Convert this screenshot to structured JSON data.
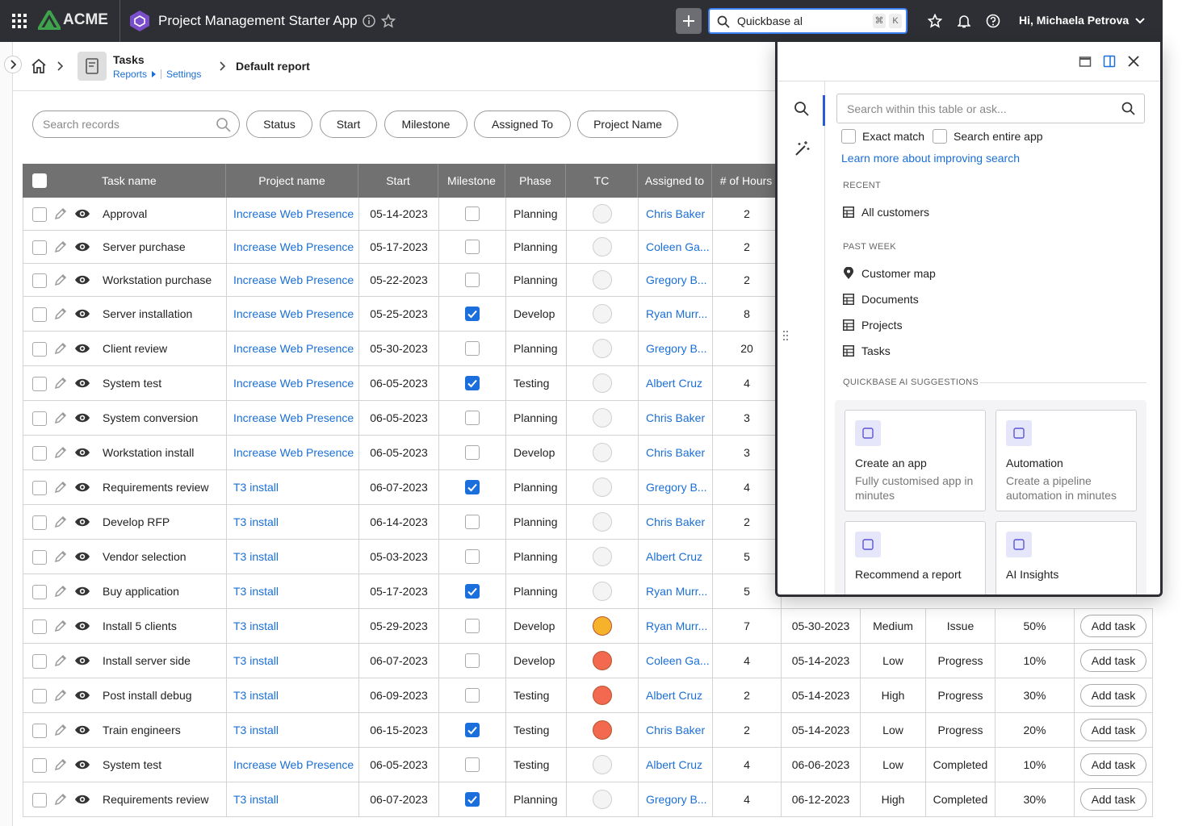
{
  "topbar": {
    "brand": "ACME",
    "app_title": "Project Management Starter App",
    "search": "Quickbase al",
    "shortcut": [
      "⌘",
      "K"
    ],
    "user": "Hi, Michaela Petrova"
  },
  "breadcrumb": {
    "table": "Tasks",
    "links": [
      "Reports",
      "Settings"
    ],
    "report": "Default report"
  },
  "filters": {
    "search_placeholder": "Search records",
    "buttons": [
      "Status",
      "Start",
      "Milestone",
      "Assigned To",
      "Project Name"
    ]
  },
  "table": {
    "columns": [
      "Task name",
      "Project name",
      "Start",
      "Milestone",
      "Phase",
      "TC",
      "Assigned to",
      "# of Hours"
    ],
    "rows": [
      {
        "task": "Approval",
        "project": "Increase Web Presence",
        "start": "05-14-2023",
        "milestone": false,
        "phase": "Planning",
        "tc": null,
        "assigned": "Chris Baker",
        "hours": 2
      },
      {
        "task": "Server purchase",
        "project": "Increase Web Presence",
        "start": "05-17-2023",
        "milestone": false,
        "phase": "Planning",
        "tc": null,
        "assigned": "Coleen Ga...",
        "hours": 2
      },
      {
        "task": "Workstation purchase",
        "project": "Increase Web Presence",
        "start": "05-22-2023",
        "milestone": false,
        "phase": "Planning",
        "tc": null,
        "assigned": "Gregory B...",
        "hours": 2
      },
      {
        "task": "Server installation",
        "project": "Increase Web Presence",
        "start": "05-25-2023",
        "milestone": true,
        "phase": "Develop",
        "tc": null,
        "assigned": "Ryan Murr...",
        "hours": 8
      },
      {
        "task": "Client review",
        "project": "Increase Web Presence",
        "start": "05-30-2023",
        "milestone": false,
        "phase": "Planning",
        "tc": null,
        "assigned": "Gregory B...",
        "hours": 20
      },
      {
        "task": "System test",
        "project": "Increase Web Presence",
        "start": "06-05-2023",
        "milestone": true,
        "phase": "Testing",
        "tc": null,
        "assigned": "Albert Cruz",
        "hours": 4
      },
      {
        "task": "System conversion",
        "project": "Increase Web Presence",
        "start": "06-05-2023",
        "milestone": false,
        "phase": "Planning",
        "tc": null,
        "assigned": "Chris Baker",
        "hours": 3
      },
      {
        "task": "Workstation install",
        "project": "Increase Web Presence",
        "start": "06-05-2023",
        "milestone": false,
        "phase": "Develop",
        "tc": null,
        "assigned": "Chris Baker",
        "hours": 3
      },
      {
        "task": "Requirements review",
        "project": "T3 install",
        "start": "06-07-2023",
        "milestone": true,
        "phase": "Planning",
        "tc": null,
        "assigned": "Gregory B...",
        "hours": 4
      },
      {
        "task": "Develop RFP",
        "project": "T3 install",
        "start": "06-14-2023",
        "milestone": false,
        "phase": "Planning",
        "tc": null,
        "assigned": "Chris Baker",
        "hours": 2
      },
      {
        "task": "Vendor selection",
        "project": "T3 install",
        "start": "05-03-2023",
        "milestone": false,
        "phase": "Planning",
        "tc": null,
        "assigned": "Albert Cruz",
        "hours": 5
      },
      {
        "task": "Buy application",
        "project": "T3 install",
        "start": "05-17-2023",
        "milestone": true,
        "phase": "Planning",
        "tc": null,
        "assigned": "Ryan Murr...",
        "hours": 5
      },
      {
        "task": "Install 5 clients",
        "project": "T3 install",
        "start": "05-29-2023",
        "milestone": false,
        "phase": "Develop",
        "tc": "#f7b22c",
        "assigned": "Ryan Murr...",
        "hours": 7,
        "due": "05-30-2023",
        "priority": "Medium",
        "status": "Issue",
        "progress": "50%",
        "action": "Add task"
      },
      {
        "task": "Install server side",
        "project": "T3 install",
        "start": "06-07-2023",
        "milestone": false,
        "phase": "Develop",
        "tc": "#f2694f",
        "assigned": "Coleen Ga...",
        "hours": 4,
        "due": "05-14-2023",
        "priority": "Low",
        "status": "Progress",
        "progress": "10%",
        "action": "Add task"
      },
      {
        "task": "Post install debug",
        "project": "T3 install",
        "start": "06-09-2023",
        "milestone": false,
        "phase": "Testing",
        "tc": "#f2694f",
        "assigned": "Albert Cruz",
        "hours": 2,
        "due": "05-14-2023",
        "priority": "High",
        "status": "Progress",
        "progress": "30%",
        "action": "Add task"
      },
      {
        "task": "Train engineers",
        "project": "T3 install",
        "start": "06-15-2023",
        "milestone": true,
        "phase": "Testing",
        "tc": "#f2694f",
        "assigned": "Chris Baker",
        "hours": 2,
        "due": "05-14-2023",
        "priority": "Low",
        "status": "Progress",
        "progress": "20%",
        "action": "Add task"
      },
      {
        "task": "System test",
        "project": "Increase Web Presence",
        "start": "06-05-2023",
        "milestone": false,
        "phase": "Testing",
        "tc": null,
        "assigned": "Albert Cruz",
        "hours": 4,
        "due": "06-06-2023",
        "priority": "Low",
        "status": "Completed",
        "progress": "10%",
        "action": "Add task"
      },
      {
        "task": "Requirements review",
        "project": "T3 install",
        "start": "06-07-2023",
        "milestone": true,
        "phase": "Planning",
        "tc": null,
        "assigned": "Gregory B...",
        "hours": 4,
        "due": "06-12-2023",
        "priority": "High",
        "status": "Completed",
        "progress": "30%",
        "action": "Add task"
      }
    ]
  },
  "panel": {
    "search_placeholder": "Search within this table or ask...",
    "options": [
      "Exact match",
      "Search entire app"
    ],
    "help_link": "Learn more about improving search",
    "recent_heading": "RECENT",
    "recent": [
      "All customers"
    ],
    "past_week_heading": "PAST WEEK",
    "past_week": [
      "Customer map",
      "Documents",
      "Projects",
      "Tasks"
    ],
    "ai_heading": "QUICKBASE AI SUGGESTIONS",
    "cards": [
      {
        "title": "Create an app",
        "text": "Fully customised app in minutes"
      },
      {
        "title": "Automation",
        "text": "Create a pipeline automation in minutes"
      },
      {
        "title": "Recommend a report"
      },
      {
        "title": "AI Insights"
      }
    ]
  }
}
